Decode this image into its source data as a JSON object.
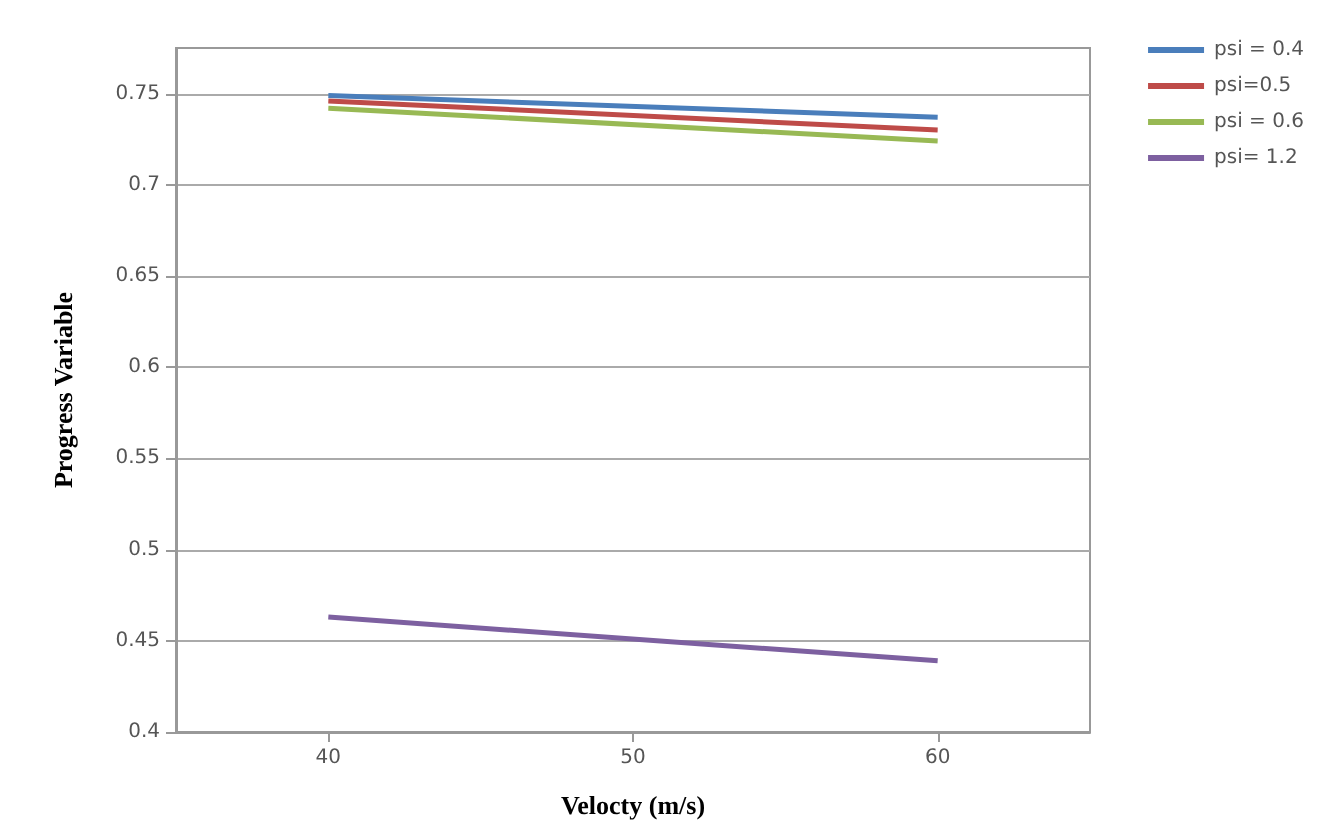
{
  "chart_data": {
    "type": "line",
    "xlabel": "Velocty (m/s)",
    "ylabel": "Progress Variable",
    "x": [
      40,
      60
    ],
    "xlim": [
      35,
      65
    ],
    "xticks": [
      40,
      50,
      60
    ],
    "ylim": [
      0.4,
      0.775
    ],
    "yticks": [
      0.4,
      0.45,
      0.5,
      0.55,
      0.6,
      0.65,
      0.7,
      0.75
    ],
    "series": [
      {
        "name": "psi = 0.4",
        "color": "#4a7ebb",
        "values": [
          0.749,
          0.737
        ]
      },
      {
        "name": "psi=0.5",
        "color": "#be4b48",
        "values": [
          0.746,
          0.73
        ]
      },
      {
        "name": "psi = 0.6",
        "color": "#98b954",
        "values": [
          0.742,
          0.724
        ]
      },
      {
        "name": "psi= 1.2",
        "color": "#7d60a0",
        "values": [
          0.463,
          0.439
        ]
      }
    ],
    "grid": "y",
    "legend": "right",
    "marker": "none",
    "line_style": "solid"
  }
}
